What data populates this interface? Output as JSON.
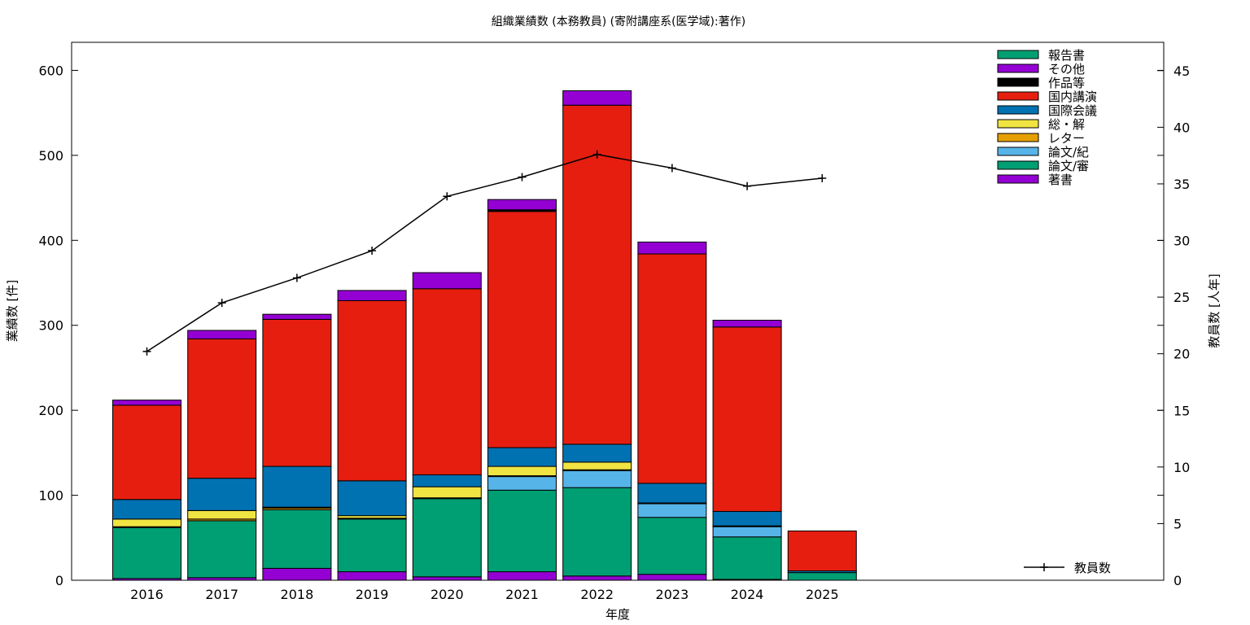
{
  "chart_data": {
    "type": "bar",
    "title": "組織業績数 (本務教員) (寄附講座系(医学域):著作)",
    "xlabel": "年度",
    "ylabel": "業績数 [件]",
    "y2label": "教員数 [人年]",
    "categories": [
      "2016",
      "2017",
      "2018",
      "2019",
      "2020",
      "2021",
      "2022",
      "2023",
      "2024",
      "2025"
    ],
    "ylim": [
      0,
      633
    ],
    "y2lim": [
      0,
      47.5
    ],
    "yticks": [
      0,
      100,
      200,
      300,
      400,
      500,
      600
    ],
    "y2ticks": [
      0,
      5,
      10,
      15,
      20,
      25,
      30,
      35,
      40,
      45
    ],
    "stacked": true,
    "legend_position": "top-right",
    "series": [
      {
        "name": "著書",
        "color": "#9400d3",
        "values": [
          2,
          3,
          14,
          10,
          4,
          10,
          5,
          7,
          1,
          0
        ]
      },
      {
        "name": "論文/審",
        "color": "#009e73",
        "values": [
          60,
          67,
          69,
          62,
          92,
          96,
          104,
          67,
          50,
          9
        ]
      },
      {
        "name": "論文/紀",
        "color": "#56b4e9",
        "values": [
          0,
          0,
          0,
          0,
          0,
          16,
          20,
          16,
          12,
          0
        ]
      },
      {
        "name": "レター",
        "color": "#e69f00",
        "values": [
          1,
          2,
          2,
          1,
          1,
          1,
          1,
          1,
          1,
          0
        ]
      },
      {
        "name": "総・解",
        "color": "#f0e442",
        "values": [
          9,
          10,
          1,
          3,
          13,
          11,
          9,
          0,
          0,
          0
        ]
      },
      {
        "name": "国際会議",
        "color": "#0072b2",
        "values": [
          23,
          38,
          48,
          41,
          14,
          22,
          21,
          23,
          17,
          2
        ]
      },
      {
        "name": "国内講演",
        "color": "#e51e10",
        "values": [
          111,
          164,
          173,
          212,
          219,
          278,
          399,
          270,
          217,
          47
        ]
      },
      {
        "name": "作品等",
        "color": "#000000",
        "values": [
          0,
          0,
          0,
          0,
          0,
          2,
          0,
          0,
          0,
          0
        ]
      },
      {
        "name": "その他",
        "color": "#9400d3",
        "values": [
          6,
          10,
          6,
          12,
          19,
          12,
          17,
          14,
          8,
          0
        ]
      },
      {
        "name": "報告書",
        "color": "#009e73",
        "values": [
          0,
          0,
          0,
          0,
          0,
          0,
          0,
          0,
          0,
          0
        ]
      }
    ],
    "line_series": {
      "name": "教員数",
      "axis": "y2",
      "values": [
        20.2,
        24.5,
        26.7,
        29.1,
        33.9,
        35.6,
        37.6,
        36.4,
        34.8,
        35.5
      ]
    }
  }
}
